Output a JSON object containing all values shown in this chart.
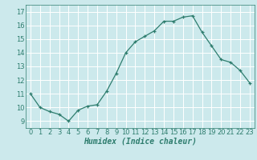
{
  "x": [
    0,
    1,
    2,
    3,
    4,
    5,
    6,
    7,
    8,
    9,
    10,
    11,
    12,
    13,
    14,
    15,
    16,
    17,
    18,
    19,
    20,
    21,
    22,
    23
  ],
  "y": [
    11.0,
    10.0,
    9.7,
    9.5,
    9.0,
    9.8,
    10.1,
    10.2,
    11.2,
    12.5,
    14.0,
    14.8,
    15.2,
    15.6,
    16.3,
    16.3,
    16.6,
    16.7,
    15.5,
    14.5,
    13.5,
    13.3,
    12.7,
    11.8
  ],
  "xlabel": "Humidex (Indice chaleur)",
  "xlim": [
    -0.5,
    23.5
  ],
  "ylim": [
    8.5,
    17.5
  ],
  "yticks": [
    9,
    10,
    11,
    12,
    13,
    14,
    15,
    16,
    17
  ],
  "xticks": [
    0,
    1,
    2,
    3,
    4,
    5,
    6,
    7,
    8,
    9,
    10,
    11,
    12,
    13,
    14,
    15,
    16,
    17,
    18,
    19,
    20,
    21,
    22,
    23
  ],
  "line_color": "#2e7d6e",
  "marker": "+",
  "bg_color": "#cce9ec",
  "grid_color": "#ffffff",
  "xlabel_fontsize": 7,
  "tick_fontsize": 6,
  "marker_size": 3,
  "linewidth": 0.9
}
